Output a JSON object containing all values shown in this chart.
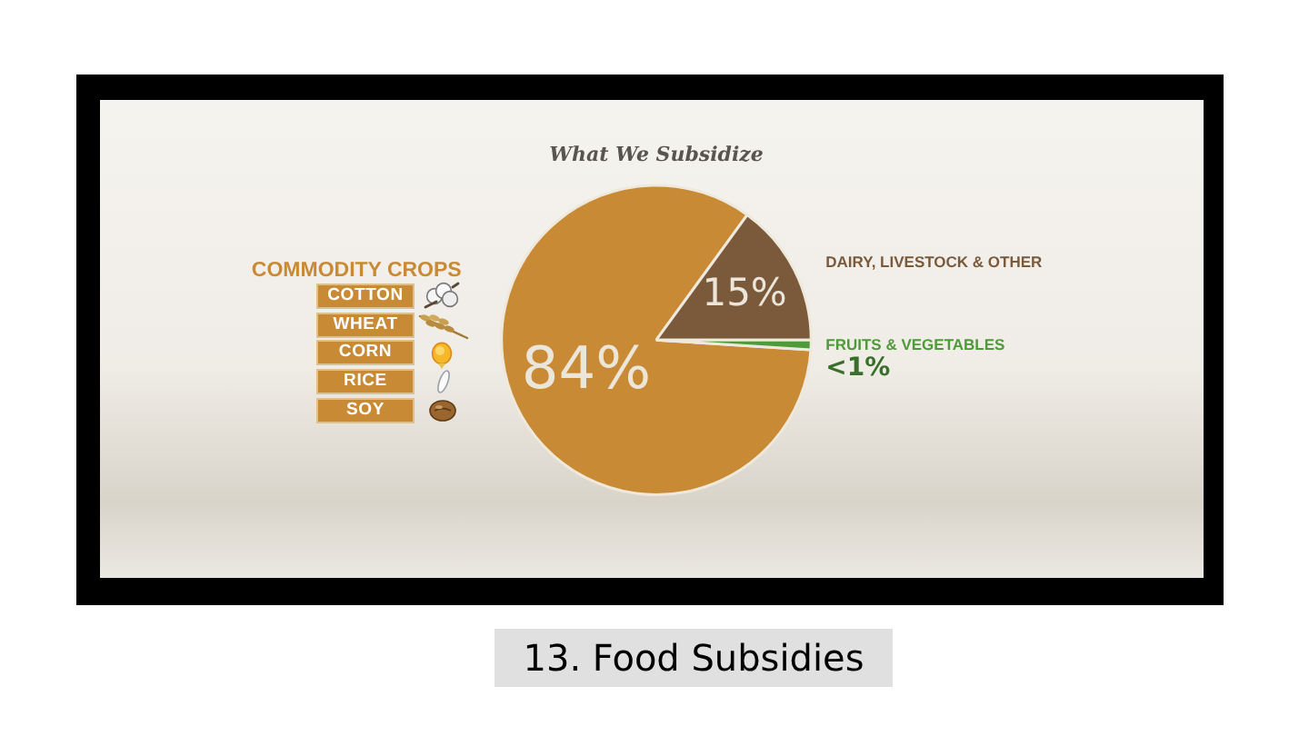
{
  "chart_data": {
    "type": "pie",
    "title": "What We Subsidize",
    "categories": [
      "COMMODITY CROPS",
      "DAIRY, LIVESTOCK & OTHER",
      "FRUITS & VEGETABLES"
    ],
    "values": [
      84,
      15,
      1
    ],
    "colors": [
      "#c98a35",
      "#7b5a3c",
      "#4f9a3a"
    ],
    "value_labels": [
      "84%",
      "15%",
      "<1%"
    ],
    "annotations": [
      "COTTON",
      "WHEAT",
      "CORN",
      "RICE",
      "SOY",
      "13. Food Subsidies"
    ]
  }
}
